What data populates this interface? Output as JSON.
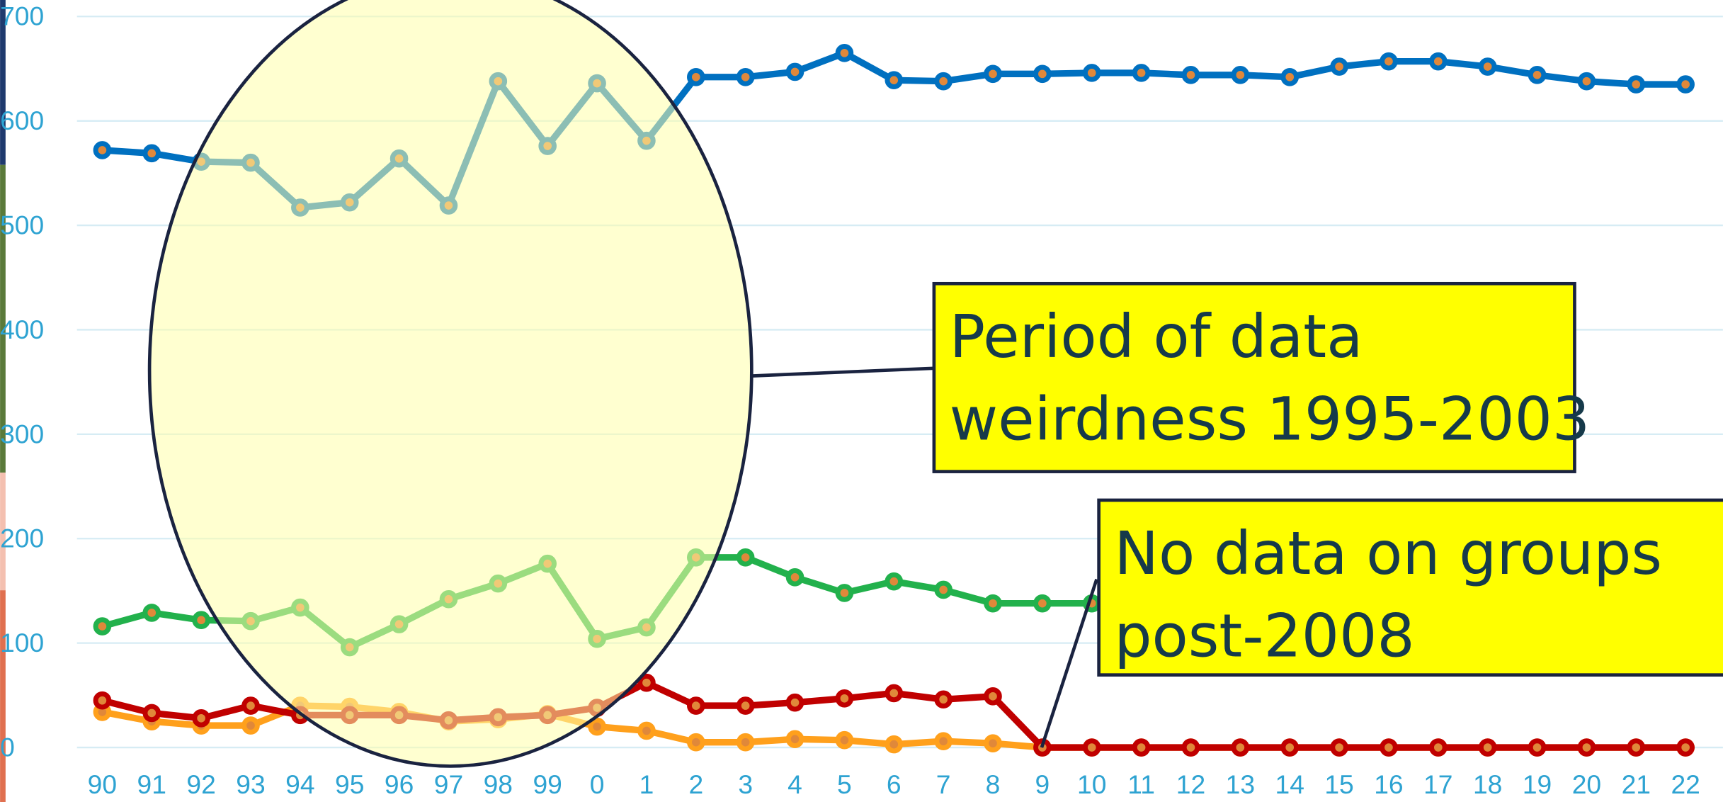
{
  "chart_data": {
    "type": "line",
    "categories": [
      "90",
      "91",
      "92",
      "93",
      "94",
      "95",
      "96",
      "97",
      "98",
      "99",
      "0",
      "1",
      "2",
      "3",
      "4",
      "5",
      "6",
      "7",
      "8",
      "9",
      "10",
      "11",
      "12",
      "13",
      "14",
      "15",
      "16",
      "17",
      "18",
      "19",
      "20",
      "21",
      "22"
    ],
    "series": [
      {
        "color": "#0070c0",
        "values": [
          572,
          569,
          561,
          560,
          517,
          522,
          564,
          519,
          638,
          576,
          636,
          581,
          642,
          642,
          647,
          665,
          639,
          638,
          645,
          645,
          646,
          646,
          644,
          644,
          642,
          652,
          657,
          657,
          652,
          644,
          638,
          635,
          635
        ]
      },
      {
        "color": "#22b14c",
        "values": [
          116,
          129,
          122,
          121,
          134,
          96,
          118,
          142,
          157,
          176,
          104,
          115,
          182,
          182,
          163,
          148,
          159,
          151,
          138,
          138,
          138,
          null,
          null,
          null,
          null,
          null,
          null,
          null,
          null,
          null,
          null,
          null,
          null
        ]
      },
      {
        "color": "#ffa01c",
        "values": [
          34,
          25,
          21,
          21,
          40,
          39,
          34,
          25,
          27,
          32,
          20,
          16,
          5,
          5,
          8,
          7,
          3,
          6,
          4,
          0,
          0,
          0,
          0,
          0,
          0,
          0,
          0,
          0,
          0,
          0,
          0,
          0,
          0
        ]
      },
      {
        "color": "#c00000",
        "values": [
          45,
          33,
          28,
          40,
          31,
          31,
          31,
          26,
          29,
          31,
          38,
          62,
          40,
          40,
          43,
          47,
          52,
          46,
          49,
          0,
          0,
          0,
          0,
          0,
          0,
          0,
          0,
          0,
          0,
          0,
          0,
          0,
          0
        ]
      }
    ],
    "ylim": [
      0,
      700
    ],
    "yticks": [
      0,
      100,
      200,
      300,
      400,
      500,
      600,
      700
    ],
    "grid": true,
    "annotations": [
      {
        "lines": [
          "Period of data",
          "weirdness 1995-2003"
        ]
      },
      {
        "lines": [
          "No data on groups",
          "post-2008"
        ]
      }
    ]
  }
}
